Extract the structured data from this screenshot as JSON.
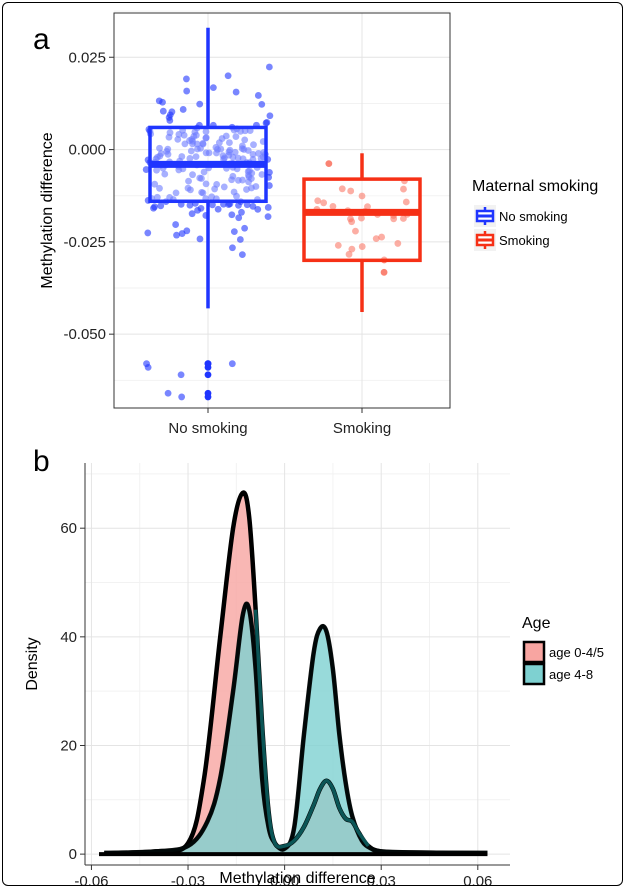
{
  "chart_data": [
    {
      "panel_label": "a",
      "type": "boxplot",
      "categories": [
        "No smoking",
        "Smoking"
      ],
      "ylabel": "Methylation difference",
      "xlabel": "",
      "ylim": [
        -0.07,
        0.037
      ],
      "yticks": [
        0.025,
        0.0,
        -0.025,
        -0.05
      ],
      "ytick_labels": [
        "0.025",
        "0.000",
        "-0.025",
        "-0.050"
      ],
      "grid": true,
      "legend_title": "Maternal smoking",
      "legend_position": "right",
      "series": [
        {
          "name": "No smoking",
          "color": "#1f35ff",
          "box": {
            "whisker_low": -0.043,
            "q1": -0.014,
            "median": -0.004,
            "q3": 0.006,
            "whisker_high": 0.033
          },
          "outliers": [
            -0.058,
            -0.059,
            -0.066,
            -0.061,
            -0.067,
            -0.058
          ],
          "n_points": 210
        },
        {
          "name": "Smoking",
          "color": "#f63016",
          "box": {
            "whisker_low": -0.044,
            "q1": -0.03,
            "median": -0.017,
            "q3": -0.008,
            "whisker_high": -0.001
          },
          "outliers": [],
          "n_points": 32
        }
      ]
    },
    {
      "panel_label": "b",
      "type": "area",
      "xlabel": "Methylation difference",
      "ylabel": "Density",
      "xlim": [
        -0.062,
        0.07
      ],
      "ylim": [
        -2,
        72
      ],
      "xticks": [
        -0.06,
        -0.03,
        0.0,
        0.03,
        0.06
      ],
      "xtick_labels": [
        "-0.06",
        "-0.03",
        "0.00",
        "0.03",
        "0.06"
      ],
      "yticks": [
        0,
        20,
        40,
        60
      ],
      "ytick_labels": [
        "0",
        "20",
        "40",
        "60"
      ],
      "grid": true,
      "legend_title": "Age",
      "legend_position": "right",
      "series": [
        {
          "name": "age 0-4/5",
          "fill": "#f8a5a1",
          "x": [
            -0.056,
            -0.04,
            -0.03,
            -0.025,
            -0.02,
            -0.016,
            -0.013,
            -0.011,
            -0.009,
            -0.007,
            -0.005,
            -0.003,
            0.0,
            0.003,
            0.006,
            0.009,
            0.011,
            0.013,
            0.015,
            0.017,
            0.019,
            0.021,
            0.023,
            0.026,
            0.03,
            0.04,
            0.063
          ],
          "y": [
            0.2,
            0.5,
            2,
            14,
            40,
            60,
            66.5,
            62,
            45,
            24,
            8,
            2,
            1.5,
            2.5,
            5,
            9,
            12,
            13.5,
            12,
            8.5,
            6.5,
            6,
            4,
            1.5,
            0.5,
            0.3,
            0.2
          ]
        },
        {
          "name": "age 4-8",
          "fill": "#7ed1d1",
          "x": [
            -0.056,
            -0.04,
            -0.03,
            -0.024,
            -0.02,
            -0.016,
            -0.013,
            -0.011,
            -0.009,
            -0.007,
            -0.005,
            -0.003,
            0.0,
            0.003,
            0.006,
            0.009,
            0.011,
            0.013,
            0.015,
            0.017,
            0.019,
            0.021,
            0.024,
            0.027,
            0.03,
            0.04,
            0.063
          ],
          "y": [
            0.2,
            0.5,
            1.5,
            6,
            14,
            30,
            44,
            45,
            34,
            14,
            5,
            2,
            1,
            5,
            22,
            37,
            41.5,
            41,
            34,
            22,
            13,
            7,
            2.5,
            1,
            0.5,
            0.3,
            0.2
          ]
        }
      ]
    }
  ]
}
